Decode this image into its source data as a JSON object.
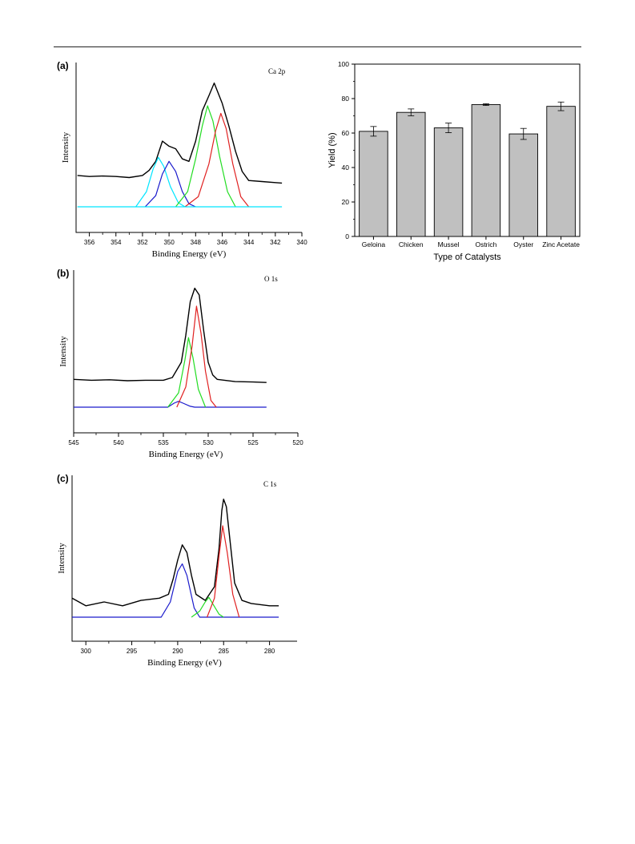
{
  "chart_data": [
    {
      "panel": "(a)",
      "type": "line",
      "label": "Ca 2p",
      "xlabel": "Binding Energy (eV)",
      "ylabel": "Intensity",
      "xlim": [
        357,
        340
      ],
      "x_ticks": [
        356,
        354,
        352,
        350,
        348,
        346,
        344,
        342,
        340
      ],
      "series": [
        {
          "color": "#000000",
          "points": [
            [
              356.9,
              0.62
            ],
            [
              356.0,
              0.6
            ],
            [
              355.0,
              0.61
            ],
            [
              354.0,
              0.6
            ],
            [
              353.0,
              0.58
            ],
            [
              352.0,
              0.62
            ],
            [
              351.5,
              0.72
            ],
            [
              351.0,
              0.9
            ],
            [
              350.5,
              1.3
            ],
            [
              350.0,
              1.2
            ],
            [
              349.5,
              1.15
            ],
            [
              349.0,
              0.95
            ],
            [
              348.5,
              0.9
            ],
            [
              348.0,
              1.3
            ],
            [
              347.5,
              1.9
            ],
            [
              347.0,
              2.2
            ],
            [
              346.6,
              2.45
            ],
            [
              346.0,
              2.05
            ],
            [
              345.5,
              1.6
            ],
            [
              345.0,
              1.1
            ],
            [
              344.5,
              0.7
            ],
            [
              344.0,
              0.52
            ],
            [
              343.0,
              0.5
            ],
            [
              342.0,
              0.48
            ],
            [
              341.5,
              0.47
            ]
          ]
        },
        {
          "color": "#00e5ff",
          "points": [
            [
              352.5,
              0.0
            ],
            [
              351.7,
              0.3
            ],
            [
              351.2,
              0.75
            ],
            [
              350.8,
              0.98
            ],
            [
              350.4,
              0.8
            ],
            [
              349.9,
              0.4
            ],
            [
              349.3,
              0.08
            ],
            [
              348.8,
              0.0
            ]
          ]
        },
        {
          "color": "#1a1acc",
          "points": [
            [
              351.8,
              0.0
            ],
            [
              351.0,
              0.22
            ],
            [
              350.5,
              0.65
            ],
            [
              350.0,
              0.9
            ],
            [
              349.5,
              0.7
            ],
            [
              349.0,
              0.3
            ],
            [
              348.5,
              0.06
            ],
            [
              348.0,
              0.0
            ]
          ]
        },
        {
          "color": "#22dd22",
          "points": [
            [
              349.5,
              0.0
            ],
            [
              348.6,
              0.3
            ],
            [
              348.0,
              0.95
            ],
            [
              347.5,
              1.6
            ],
            [
              347.1,
              2.0
            ],
            [
              346.7,
              1.7
            ],
            [
              346.2,
              1.0
            ],
            [
              345.6,
              0.3
            ],
            [
              345.0,
              0.0
            ]
          ]
        },
        {
          "color": "#e02020",
          "points": [
            [
              348.8,
              0.0
            ],
            [
              347.8,
              0.2
            ],
            [
              347.0,
              0.85
            ],
            [
              346.5,
              1.5
            ],
            [
              346.1,
              1.85
            ],
            [
              345.7,
              1.55
            ],
            [
              345.2,
              0.85
            ],
            [
              344.6,
              0.2
            ],
            [
              344.0,
              0.0
            ]
          ]
        },
        {
          "color": "#00e5ff",
          "points": [
            [
              356.9,
              0.0
            ],
            [
              341.5,
              0.0
            ]
          ]
        }
      ]
    },
    {
      "panel": "(b)",
      "type": "line",
      "label": "O 1s",
      "xlabel": "Binding Energy (eV)",
      "ylabel": "Intensity",
      "xlim": [
        545,
        520
      ],
      "x_ticks": [
        545,
        540,
        535,
        530,
        525,
        520
      ],
      "series": [
        {
          "color": "#000000",
          "points": [
            [
              545.0,
              0.62
            ],
            [
              543.0,
              0.6
            ],
            [
              541.0,
              0.61
            ],
            [
              539.0,
              0.59
            ],
            [
              537.0,
              0.6
            ],
            [
              535.0,
              0.6
            ],
            [
              534.0,
              0.66
            ],
            [
              533.0,
              1.0
            ],
            [
              532.5,
              1.6
            ],
            [
              532.0,
              2.35
            ],
            [
              531.5,
              2.65
            ],
            [
              531.0,
              2.5
            ],
            [
              530.5,
              1.7
            ],
            [
              530.0,
              1.0
            ],
            [
              529.5,
              0.72
            ],
            [
              529.0,
              0.62
            ],
            [
              527.0,
              0.57
            ],
            [
              525.0,
              0.56
            ],
            [
              523.5,
              0.55
            ]
          ]
        },
        {
          "color": "#1a1acc",
          "points": [
            [
              545.0,
              0.0
            ],
            [
              534.5,
              0.0
            ],
            [
              533.8,
              0.09
            ],
            [
              533.3,
              0.13
            ],
            [
              532.8,
              0.09
            ],
            [
              532.0,
              0.02
            ],
            [
              531.5,
              0.0
            ],
            [
              523.5,
              0.0
            ]
          ]
        },
        {
          "color": "#22dd22",
          "points": [
            [
              534.5,
              0.0
            ],
            [
              533.3,
              0.32
            ],
            [
              532.6,
              1.05
            ],
            [
              532.2,
              1.55
            ],
            [
              531.7,
              1.1
            ],
            [
              531.1,
              0.4
            ],
            [
              530.3,
              0.0
            ]
          ]
        },
        {
          "color": "#e02020",
          "points": [
            [
              533.5,
              0.0
            ],
            [
              532.5,
              0.45
            ],
            [
              531.8,
              1.35
            ],
            [
              531.3,
              2.25
            ],
            [
              530.8,
              1.65
            ],
            [
              530.3,
              0.8
            ],
            [
              529.7,
              0.15
            ],
            [
              529.1,
              0.0
            ]
          ]
        }
      ]
    },
    {
      "panel": "(c)",
      "type": "line",
      "label": "C 1s",
      "xlabel": "Binding Energy (eV)",
      "ylabel": "Intensity",
      "xlim": [
        301.5,
        277
      ],
      "x_ticks": [
        300,
        295,
        290,
        285,
        280
      ],
      "series": [
        {
          "color": "#000000",
          "points": [
            [
              301.5,
              0.25
            ],
            [
              300.0,
              0.15
            ],
            [
              298.0,
              0.2
            ],
            [
              296.0,
              0.15
            ],
            [
              294.0,
              0.22
            ],
            [
              292.0,
              0.25
            ],
            [
              291.0,
              0.3
            ],
            [
              290.5,
              0.5
            ],
            [
              290.0,
              0.75
            ],
            [
              289.5,
              0.95
            ],
            [
              289.0,
              0.85
            ],
            [
              288.5,
              0.55
            ],
            [
              288.0,
              0.3
            ],
            [
              287.0,
              0.22
            ],
            [
              286.0,
              0.4
            ],
            [
              285.5,
              0.9
            ],
            [
              285.2,
              1.4
            ],
            [
              285.0,
              1.55
            ],
            [
              284.7,
              1.45
            ],
            [
              284.3,
              1.0
            ],
            [
              283.8,
              0.45
            ],
            [
              283.0,
              0.22
            ],
            [
              282.0,
              0.18
            ],
            [
              280.0,
              0.15
            ],
            [
              279.0,
              0.15
            ]
          ]
        },
        {
          "color": "#1a1acc",
          "points": [
            [
              301.5,
              0.0
            ],
            [
              291.8,
              0.0
            ],
            [
              290.8,
              0.2
            ],
            [
              290.0,
              0.6
            ],
            [
              289.5,
              0.7
            ],
            [
              289.0,
              0.55
            ],
            [
              288.2,
              0.12
            ],
            [
              287.6,
              0.0
            ],
            [
              279.0,
              0.0
            ]
          ]
        },
        {
          "color": "#22dd22",
          "points": [
            [
              288.5,
              0.0
            ],
            [
              287.6,
              0.08
            ],
            [
              287.0,
              0.2
            ],
            [
              286.6,
              0.26
            ],
            [
              286.1,
              0.16
            ],
            [
              285.5,
              0.04
            ],
            [
              285.0,
              0.0
            ]
          ]
        },
        {
          "color": "#e02020",
          "points": [
            [
              286.8,
              0.0
            ],
            [
              286.0,
              0.25
            ],
            [
              285.5,
              0.8
            ],
            [
              285.1,
              1.2
            ],
            [
              284.6,
              0.85
            ],
            [
              284.0,
              0.3
            ],
            [
              283.3,
              0.0
            ]
          ]
        }
      ]
    },
    {
      "type": "bar",
      "categories": [
        "Geloina",
        "Chicken",
        "Mussel",
        "Ostrich",
        "Oyster",
        "Zinc Acetate"
      ],
      "values": [
        61,
        72,
        63,
        76.5,
        59.5,
        75.5
      ],
      "errors": [
        2.8,
        2.0,
        2.8,
        0.5,
        3.2,
        2.5
      ],
      "xlabel": "Type of Catalysts",
      "ylabel": "Yield (%)",
      "ylim": [
        0,
        100
      ],
      "y_ticks": [
        0,
        20,
        40,
        60,
        80,
        100
      ],
      "bar_color": "#c0c0c0"
    }
  ]
}
